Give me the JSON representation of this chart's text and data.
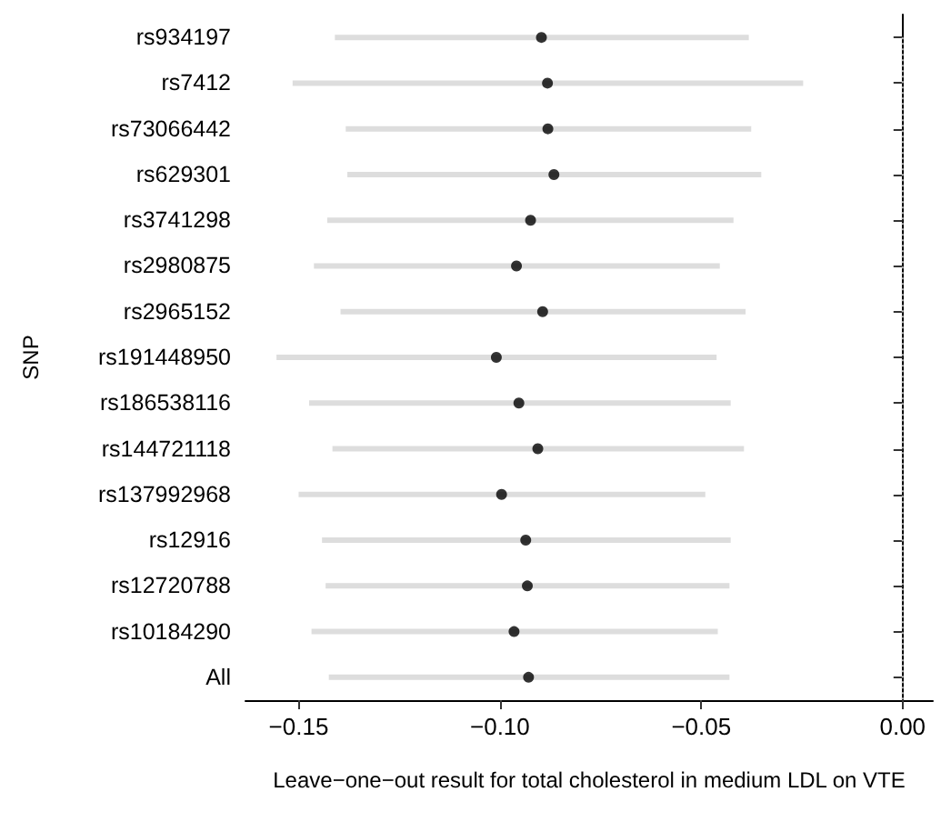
{
  "chart_data": {
    "type": "scatter",
    "orientation": "horizontal",
    "xlabel": "Leave−one−out result for total cholesterol in medium LDL on VTE",
    "ylabel": "SNP",
    "categories": [
      "rs934197",
      "rs7412",
      "rs73066442",
      "rs629301",
      "rs3741298",
      "rs2980875",
      "rs2965152",
      "rs191448950",
      "rs186538116",
      "rs144721118",
      "rs137992968",
      "rs12916",
      "rs12720788",
      "rs10184290",
      "All"
    ],
    "values": [
      -0.0897,
      -0.0882,
      -0.0881,
      -0.0866,
      -0.0924,
      -0.0959,
      -0.0894,
      -0.1009,
      -0.0953,
      -0.0906,
      -0.0996,
      -0.0936,
      -0.0932,
      -0.0965,
      -0.0929
    ],
    "errors": [
      [
        -0.141,
        -0.0382
      ],
      [
        -0.1515,
        -0.0247
      ],
      [
        -0.1383,
        -0.0376
      ],
      [
        -0.1379,
        -0.0351
      ],
      [
        -0.1429,
        -0.042
      ],
      [
        -0.1462,
        -0.0454
      ],
      [
        -0.1396,
        -0.039
      ],
      [
        -0.1555,
        -0.0462
      ],
      [
        -0.1474,
        -0.0427
      ],
      [
        -0.1416,
        -0.0394
      ],
      [
        -0.15,
        -0.049
      ],
      [
        -0.1442,
        -0.0427
      ],
      [
        -0.1433,
        -0.043
      ],
      [
        -0.1468,
        -0.0459
      ],
      [
        -0.1425,
        -0.043
      ]
    ],
    "color": "#000000",
    "marker": "circle",
    "xlim": [
      -0.1632,
      0.0075
    ],
    "xticks": [
      {
        "value": -0.15,
        "label": "−0.15"
      },
      {
        "value": -0.1,
        "label": "−0.10"
      },
      {
        "value": -0.05,
        "label": "−0.05"
      },
      {
        "value": 0,
        "label": "0.00"
      }
    ],
    "ref_lines": [
      {
        "axis": "x",
        "value": 0,
        "line_style": "dotted",
        "color": "#bbbbbb"
      }
    ],
    "grid": false
  }
}
